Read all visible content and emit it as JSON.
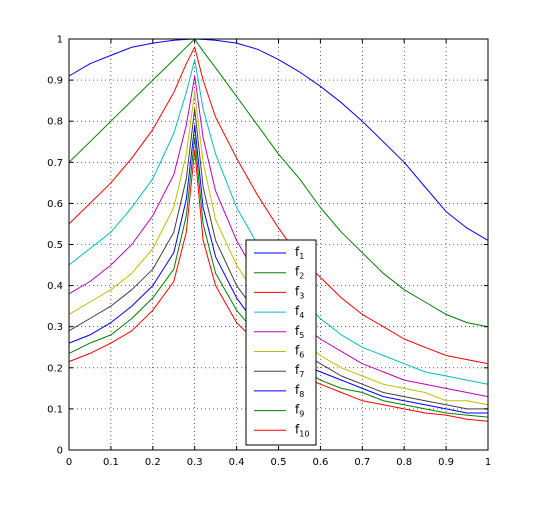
{
  "chart_data": {
    "type": "line",
    "xlim": [
      0,
      1
    ],
    "ylim": [
      0,
      1
    ],
    "xticks": [
      "0",
      "0.1",
      "0.2",
      "0.3",
      "0.4",
      "0.5",
      "0.6",
      "0.7",
      "0.8",
      "0.9",
      "1"
    ],
    "yticks": [
      "0",
      "0.1",
      "0.2",
      "0.3",
      "0.4",
      "0.5",
      "0.6",
      "0.7",
      "0.8",
      "0.9",
      "1"
    ],
    "grid": true,
    "legend_position": "bottom-center",
    "x": [
      0,
      0.05,
      0.1,
      0.15,
      0.2,
      0.25,
      0.28,
      0.3,
      0.32,
      0.35,
      0.4,
      0.45,
      0.5,
      0.55,
      0.6,
      0.65,
      0.7,
      0.75,
      0.8,
      0.85,
      0.9,
      0.95,
      1
    ],
    "series": [
      {
        "name": "f",
        "sub": "1",
        "color": "#0000ff",
        "values": [
          0.91,
          0.94,
          0.96,
          0.98,
          0.99,
          0.997,
          0.999,
          1,
          0.999,
          0.997,
          0.99,
          0.975,
          0.95,
          0.92,
          0.885,
          0.845,
          0.8,
          0.75,
          0.7,
          0.64,
          0.58,
          0.54,
          0.51
        ]
      },
      {
        "name": "f",
        "sub": "2",
        "color": "#008000",
        "values": [
          0.7,
          0.75,
          0.8,
          0.85,
          0.9,
          0.95,
          0.98,
          1,
          0.97,
          0.93,
          0.86,
          0.79,
          0.72,
          0.66,
          0.59,
          0.53,
          0.48,
          0.43,
          0.39,
          0.36,
          0.33,
          0.31,
          0.3
        ]
      },
      {
        "name": "f",
        "sub": "3",
        "color": "#ff0000",
        "values": [
          0.55,
          0.6,
          0.65,
          0.71,
          0.78,
          0.87,
          0.94,
          0.98,
          0.9,
          0.81,
          0.71,
          0.62,
          0.54,
          0.47,
          0.42,
          0.37,
          0.33,
          0.3,
          0.27,
          0.25,
          0.23,
          0.22,
          0.21
        ]
      },
      {
        "name": "f",
        "sub": "4",
        "color": "#00c0c0",
        "values": [
          0.45,
          0.49,
          0.53,
          0.59,
          0.66,
          0.77,
          0.87,
          0.95,
          0.83,
          0.72,
          0.59,
          0.5,
          0.43,
          0.37,
          0.32,
          0.28,
          0.25,
          0.23,
          0.21,
          0.19,
          0.18,
          0.17,
          0.16
        ]
      },
      {
        "name": "f",
        "sub": "5",
        "color": "#c000c0",
        "values": [
          0.38,
          0.41,
          0.45,
          0.5,
          0.57,
          0.67,
          0.79,
          0.91,
          0.76,
          0.63,
          0.51,
          0.42,
          0.36,
          0.31,
          0.27,
          0.24,
          0.21,
          0.19,
          0.17,
          0.16,
          0.15,
          0.14,
          0.13
        ]
      },
      {
        "name": "f",
        "sub": "6",
        "color": "#c0c000",
        "values": [
          0.33,
          0.36,
          0.39,
          0.43,
          0.49,
          0.59,
          0.72,
          0.87,
          0.7,
          0.56,
          0.45,
          0.37,
          0.31,
          0.27,
          0.23,
          0.2,
          0.18,
          0.16,
          0.15,
          0.14,
          0.12,
          0.12,
          0.11
        ]
      },
      {
        "name": "f",
        "sub": "7",
        "color": "#404040",
        "values": [
          0.29,
          0.32,
          0.35,
          0.39,
          0.44,
          0.53,
          0.66,
          0.83,
          0.64,
          0.51,
          0.4,
          0.33,
          0.28,
          0.24,
          0.21,
          0.18,
          0.16,
          0.14,
          0.13,
          0.12,
          0.11,
          0.1,
          0.1
        ]
      },
      {
        "name": "f",
        "sub": "8",
        "color": "#0000ff",
        "values": [
          0.26,
          0.28,
          0.31,
          0.35,
          0.4,
          0.48,
          0.61,
          0.79,
          0.59,
          0.47,
          0.37,
          0.3,
          0.25,
          0.21,
          0.19,
          0.17,
          0.15,
          0.13,
          0.12,
          0.11,
          0.1,
          0.09,
          0.09
        ]
      },
      {
        "name": "f",
        "sub": "9",
        "color": "#008000",
        "values": [
          0.235,
          0.26,
          0.28,
          0.32,
          0.37,
          0.44,
          0.57,
          0.76,
          0.55,
          0.43,
          0.34,
          0.28,
          0.23,
          0.2,
          0.17,
          0.15,
          0.14,
          0.12,
          0.11,
          0.1,
          0.09,
          0.085,
          0.08
        ]
      },
      {
        "name": "f",
        "sub": "10",
        "color": "#ff0000",
        "values": [
          0.215,
          0.235,
          0.26,
          0.29,
          0.34,
          0.41,
          0.53,
          0.73,
          0.51,
          0.4,
          0.31,
          0.26,
          0.21,
          0.18,
          0.16,
          0.14,
          0.12,
          0.11,
          0.1,
          0.09,
          0.085,
          0.075,
          0.07
        ]
      }
    ]
  }
}
